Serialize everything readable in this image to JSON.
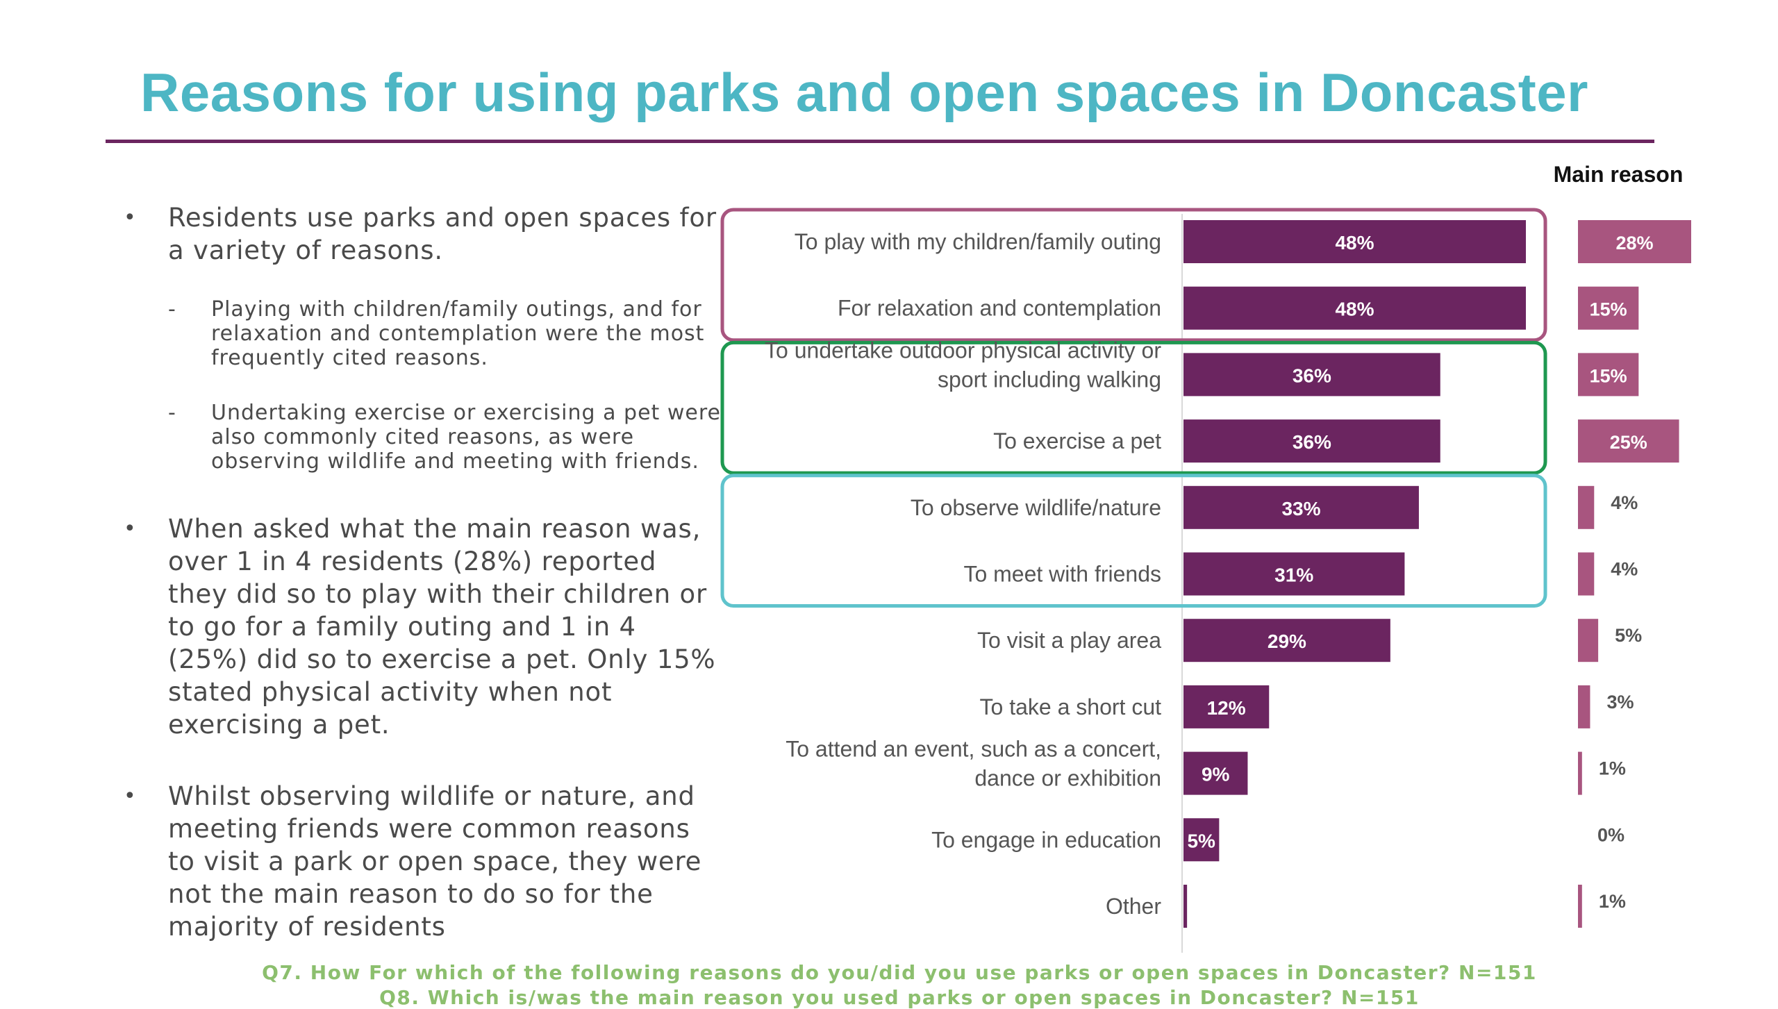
{
  "title": "Reasons for using parks and open spaces in Doncaster",
  "bullets": {
    "b1": "Residents use parks and open spaces for a variety of reasons.",
    "s1": "Playing with children/family outings, and for relaxation and contemplation were the most frequently cited reasons.",
    "s2": "Undertaking exercise or exercising a pet were also commonly cited reasons, as were observing wildlife and meeting with friends.",
    "b2": "When asked what the main reason was, over 1 in 4 residents (28%) reported they did so to play with their children or to go for a family outing and 1 in 4 (25%) did so to exercise a pet. Only 15% stated physical activity when not exercising a pet.",
    "b3": "Whilst observing wildlife or nature, and meeting friends were common reasons to visit a park or open space, they were not the main reason to do so for the majority of residents"
  },
  "footnotes": {
    "q7": "Q7. How For which of the following reasons do you/did you use parks or open spaces in Doncaster? N=151",
    "q8": "Q8. Which is/was the main reason you used parks or open spaces in Doncaster? N=151"
  },
  "colors": {
    "title": "#4db6c4",
    "bar_all": "#6b2560",
    "bar_main": "#a8557f",
    "box_pink": "#a8557f",
    "box_green": "#1e9850",
    "box_teal": "#5fc3cc",
    "footnote": "#8cbf6e"
  },
  "chart_data": {
    "type": "bar",
    "orientation": "horizontal",
    "categories": [
      [
        "To play with my children/family outing"
      ],
      [
        "For relaxation and contemplation"
      ],
      [
        "To undertake outdoor physical activity or",
        "sport including walking"
      ],
      [
        "To exercise a pet"
      ],
      [
        "To observe wildlife/nature"
      ],
      [
        "To meet with friends"
      ],
      [
        "To visit a play area"
      ],
      [
        "To take a short cut"
      ],
      [
        "To attend an event, such as a concert,",
        "dance or exhibition"
      ],
      [
        "To engage in education"
      ],
      [
        "Other"
      ]
    ],
    "series": [
      {
        "values": [
          48,
          48,
          36,
          36,
          33,
          31,
          29,
          12,
          9,
          5,
          0.5
        ],
        "labels": [
          "48%",
          "48%",
          "36%",
          "36%",
          "33%",
          "31%",
          "29%",
          "12%",
          "9%",
          "5%",
          ""
        ]
      },
      {
        "name": "Main reason",
        "values": [
          28,
          15,
          15,
          25,
          4,
          4,
          5,
          3,
          1,
          0,
          1
        ],
        "labels": [
          "28%",
          "15%",
          "15%",
          "25%",
          "4%",
          "4%",
          "5%",
          "3%",
          "1%",
          "0%",
          "1%"
        ]
      }
    ],
    "unit": "%",
    "groups": [
      {
        "rows": [
          0,
          1
        ],
        "color": "pink"
      },
      {
        "rows": [
          2,
          3
        ],
        "color": "green"
      },
      {
        "rows": [
          4,
          5
        ],
        "color": "teal"
      }
    ]
  }
}
